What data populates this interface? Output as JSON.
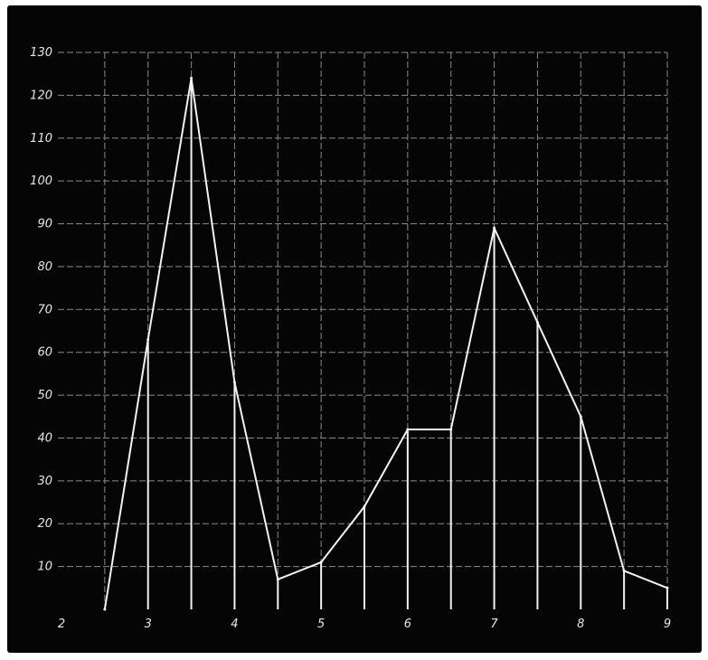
{
  "chart_data": {
    "type": "line",
    "title": "",
    "xlabel": "",
    "ylabel": "",
    "xlim": [
      2,
      9
    ],
    "ylim": [
      0,
      130
    ],
    "x_ticks": [
      {
        "value": 2,
        "label": "2"
      },
      {
        "value": 3,
        "label": "3"
      },
      {
        "value": 4,
        "label": "4"
      },
      {
        "value": 5,
        "label": "5"
      },
      {
        "value": 6,
        "label": "6"
      },
      {
        "value": 7,
        "label": "7"
      },
      {
        "value": 8,
        "label": "8"
      },
      {
        "value": 9,
        "label": "9"
      }
    ],
    "y_ticks": [
      {
        "value": 10,
        "label": "10"
      },
      {
        "value": 20,
        "label": "20"
      },
      {
        "value": 30,
        "label": "30"
      },
      {
        "value": 40,
        "label": "40"
      },
      {
        "value": 50,
        "label": "50"
      },
      {
        "value": 60,
        "label": "60"
      },
      {
        "value": 70,
        "label": "70"
      },
      {
        "value": 80,
        "label": "80"
      },
      {
        "value": 90,
        "label": "90"
      },
      {
        "value": 100,
        "label": "100"
      },
      {
        "value": 110,
        "label": "110"
      },
      {
        "value": 120,
        "label": "120"
      },
      {
        "value": 130,
        "label": "130"
      }
    ],
    "grid": true,
    "drop_lines": true,
    "series": [
      {
        "x": [
          2.5,
          3.0,
          3.5,
          4.0,
          4.5,
          5.0,
          5.5,
          6.0,
          6.5,
          7.0,
          7.5,
          8.0,
          8.5,
          9.0
        ],
        "y": [
          0,
          63,
          124,
          53,
          7,
          11,
          24,
          42,
          42,
          89,
          67,
          45,
          9,
          5
        ]
      }
    ],
    "colors": {
      "background": "#050505",
      "grid": "#8a8a8a",
      "line": "#f2f2f2",
      "text": "#e6e6e6"
    }
  }
}
